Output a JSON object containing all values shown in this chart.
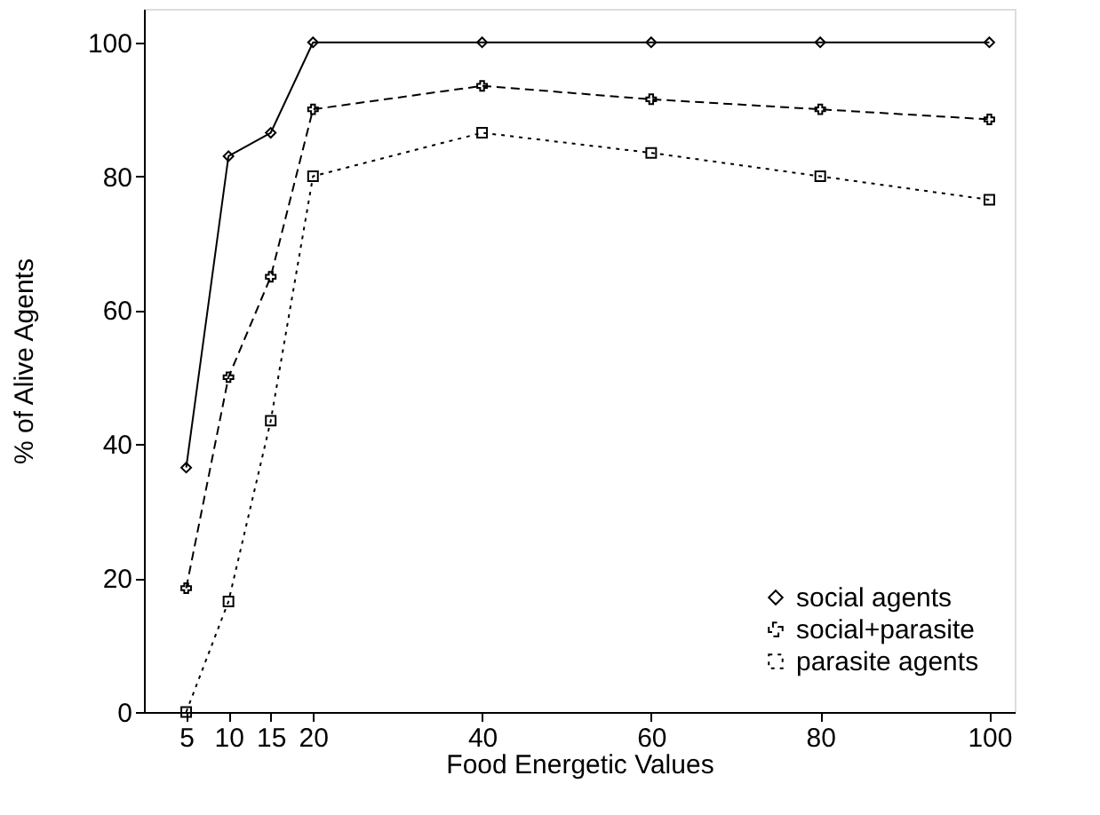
{
  "chart_data": {
    "type": "line",
    "xlabel": "Food Energetic Values",
    "ylabel": "% of Alive Agents",
    "x": [
      5,
      10,
      15,
      20,
      40,
      60,
      80,
      100
    ],
    "xlim": [
      0,
      103
    ],
    "xticks": [
      5,
      10,
      15,
      20,
      40,
      60,
      80,
      100
    ],
    "ylim": [
      0,
      105
    ],
    "yticks": [
      0,
      20,
      40,
      60,
      80,
      100
    ],
    "grid": false,
    "legend": "bottom right",
    "series": [
      {
        "name": "social agents",
        "color": "#000000",
        "marker": "diamond",
        "line_style": "solid",
        "values": [
          36.5,
          83,
          86.5,
          100,
          100,
          100,
          100,
          100
        ]
      },
      {
        "name": "social+parasite",
        "color": "#000000",
        "marker": "cross",
        "line_style": "dashed",
        "values": [
          18.5,
          50,
          65,
          90,
          93.5,
          91.5,
          90,
          88.5
        ]
      },
      {
        "name": "parasite agents",
        "color": "#000000",
        "marker": "square",
        "line_style": "dotted",
        "values": [
          0,
          16.5,
          43.5,
          80,
          86.5,
          83.5,
          80,
          76.5
        ]
      }
    ]
  }
}
